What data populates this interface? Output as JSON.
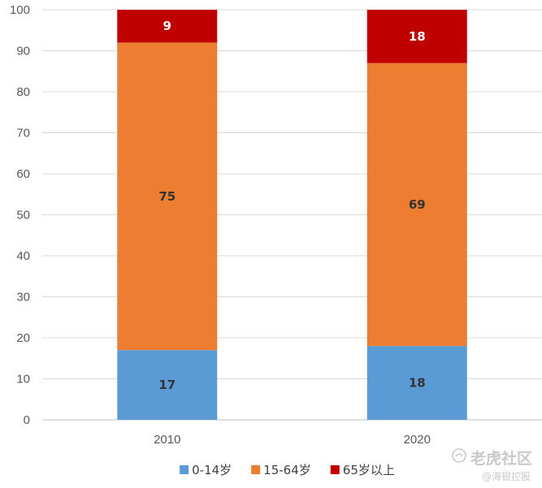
{
  "chart_data": {
    "type": "bar",
    "stacked": true,
    "categories": [
      "2010",
      "2020"
    ],
    "series": [
      {
        "name": "0-14岁",
        "values": [
          17,
          18
        ],
        "color": "#5B9BD5",
        "label_color": "#333333"
      },
      {
        "name": "15-64岁",
        "values": [
          75,
          69
        ],
        "color": "#ED7D31",
        "label_color": "#333333"
      },
      {
        "name": "65岁以上",
        "values": [
          9,
          18
        ],
        "color": "#C00000",
        "label_color": "#ffffff"
      }
    ],
    "ylim": [
      0,
      100
    ],
    "yticks": [
      "0",
      "10",
      "20",
      "30",
      "40",
      "50",
      "60",
      "70",
      "80",
      "90",
      "100"
    ],
    "grid": true,
    "legend_position": "bottom"
  },
  "watermark": {
    "main": "老虎社区",
    "sub": "@海银控股",
    "logo_icon": "tiger-logo-icon"
  }
}
